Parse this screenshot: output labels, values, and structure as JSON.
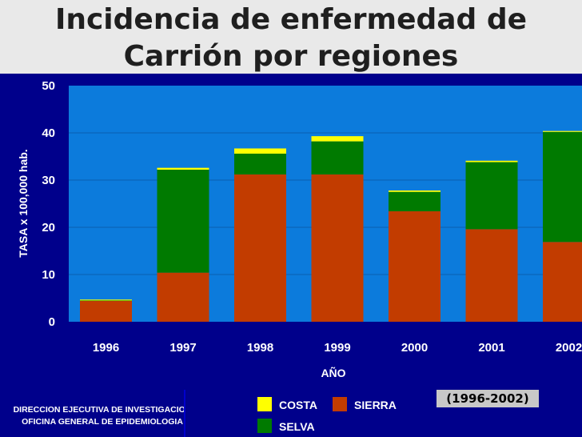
{
  "title": {
    "line1": "Incidencia de enfermedad de",
    "line2": "Carrión por regiones"
  },
  "chart_data": {
    "type": "bar",
    "stacked": true,
    "categories": [
      "1996",
      "1997",
      "1998",
      "1999",
      "2000",
      "2001",
      "2002"
    ],
    "series": [
      {
        "name": "SIERRA",
        "color": "#c23c00",
        "values": [
          4.4,
          10.4,
          31.2,
          31.2,
          23.4,
          19.6,
          16.9
        ]
      },
      {
        "name": "SELVA",
        "color": "#007a00",
        "values": [
          0.1,
          21.8,
          4.4,
          7.0,
          4.1,
          14.2,
          23.3
        ]
      },
      {
        "name": "COSTA",
        "color": "#ffff00",
        "values": [
          0.2,
          0.4,
          1.1,
          1.1,
          0.3,
          0.3,
          0.2
        ]
      }
    ],
    "ylim": [
      0,
      50
    ],
    "yticks": [
      "0",
      "10",
      "20",
      "30",
      "40",
      "50"
    ],
    "xlabel": "AÑO",
    "ylabel": "TASA x 100,000 hab.",
    "plot_bg": "#0c7bdc",
    "grid": true
  },
  "footer": {
    "org_line1": "DIRECCION EJECUTIVA DE INVESTIGACION",
    "org_line2": "OFICINA GENERAL DE EPIDEMIOLOGIA"
  },
  "legend": {
    "costa": "COSTA",
    "sierra": "SIERRA",
    "selva": "SELVA"
  },
  "period": "(1996-2002)"
}
